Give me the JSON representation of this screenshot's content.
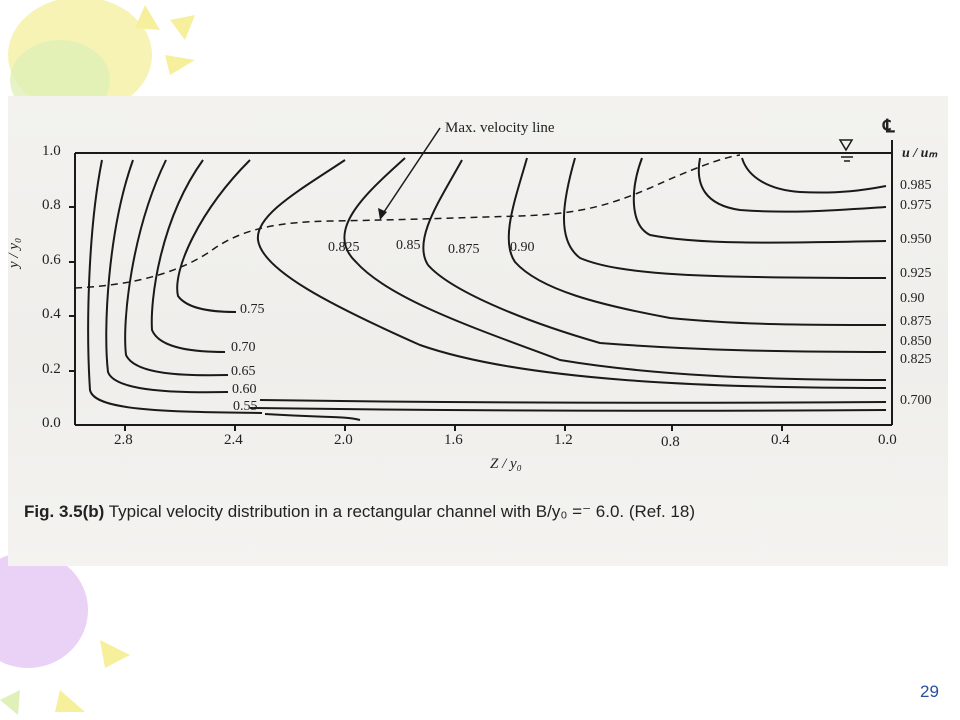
{
  "figure": {
    "number": "Fig. 3.5(b)",
    "caption": "Typical velocity distribution in a rectangular channel with B/y₀ =⁻ 6.0. (Ref. 18)"
  },
  "axes": {
    "y_label": "y / y₀",
    "x_label": "Z / y₀",
    "y_ticks": [
      "1.0",
      "0.8",
      "0.6",
      "0.4",
      "0.2",
      "0.0"
    ],
    "x_ticks": [
      "2.8",
      "2.4",
      "2.0",
      "1.6",
      "1.2",
      "0.8",
      "0.4",
      "0.0"
    ],
    "right_header": "u / uₘ",
    "centerline_mark": "℄"
  },
  "annotations": {
    "max_velocity_line": "Max. velocity line"
  },
  "contour_labels": [
    "0.825",
    "0.85",
    "0.875",
    "0.90",
    "0.75",
    "0.70",
    "0.65",
    "0.60",
    "0.55"
  ],
  "right_labels": [
    "0.985",
    "0.975",
    "0.950",
    "0.925",
    "0.90",
    "0.875",
    "0.850",
    "0.825",
    "0.700"
  ],
  "page_number": "29",
  "colors": {
    "decor_yellow": "#f2f0a0",
    "decor_green": "#d6ecb0",
    "decor_purple": "#e4c6f4",
    "page_number": "#2a4fa0"
  }
}
